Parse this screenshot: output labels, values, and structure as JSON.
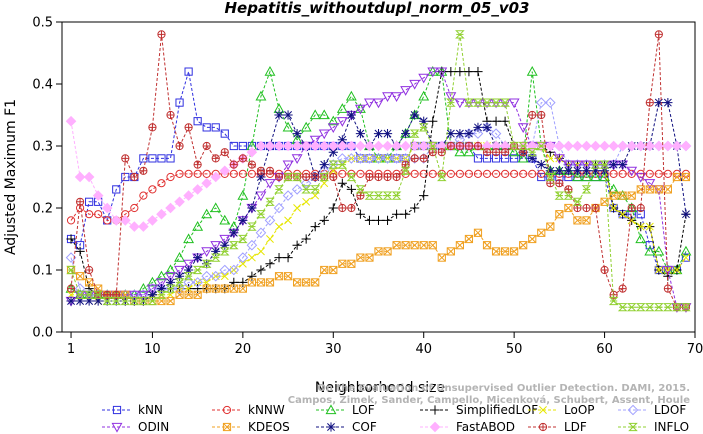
{
  "chart_data": {
    "type": "line",
    "title": "Hepatitis_withoutdupl_norm_05_v03",
    "xlabel": "Neighborhood size",
    "ylabel": "Adjusted Maximum F1",
    "xlim": [
      0,
      70
    ],
    "ylim": [
      0,
      0.5
    ],
    "xticks": [
      1,
      10,
      20,
      30,
      40,
      50,
      60,
      70
    ],
    "yticks": [
      0.0,
      0.1,
      0.2,
      0.3,
      0.4,
      0.5
    ],
    "x": [
      1,
      2,
      3,
      4,
      5,
      6,
      7,
      8,
      9,
      10,
      11,
      12,
      13,
      14,
      15,
      16,
      17,
      18,
      19,
      20,
      21,
      22,
      23,
      24,
      25,
      26,
      27,
      28,
      29,
      30,
      31,
      32,
      33,
      34,
      35,
      36,
      37,
      38,
      39,
      40,
      41,
      42,
      43,
      44,
      45,
      46,
      47,
      48,
      49,
      50,
      51,
      52,
      53,
      54,
      55,
      56,
      57,
      58,
      59,
      60,
      61,
      62,
      63,
      64,
      65,
      66,
      67,
      68,
      69
    ],
    "grid": false,
    "legend_position": "bottom",
    "series": [
      {
        "name": "kNN",
        "color": "#3030e0",
        "marker": "square",
        "values": [
          0.15,
          0.14,
          0.21,
          0.21,
          0.18,
          0.23,
          0.25,
          0.25,
          0.28,
          0.28,
          0.28,
          0.28,
          0.37,
          0.42,
          0.34,
          0.33,
          0.33,
          0.32,
          0.3,
          0.3,
          0.3,
          0.3,
          0.3,
          0.3,
          0.3,
          0.3,
          0.3,
          0.3,
          0.3,
          0.3,
          0.3,
          0.3,
          0.28,
          0.28,
          0.28,
          0.28,
          0.28,
          0.28,
          0.3,
          0.3,
          0.3,
          0.3,
          0.3,
          0.3,
          0.3,
          0.28,
          0.28,
          0.28,
          0.28,
          0.28,
          0.28,
          0.28,
          0.25,
          0.25,
          0.25,
          0.25,
          0.25,
          0.25,
          0.25,
          0.25,
          0.2,
          0.19,
          0.19,
          0.19,
          0.14,
          0.1,
          0.1,
          0.1,
          0.12
        ]
      },
      {
        "name": "kNNW",
        "color": "#e03030",
        "marker": "circle",
        "values": [
          0.18,
          0.2,
          0.19,
          0.19,
          0.18,
          0.18,
          0.19,
          0.2,
          0.22,
          0.23,
          0.24,
          0.25,
          0.255,
          0.255,
          0.255,
          0.255,
          0.255,
          0.255,
          0.255,
          0.255,
          0.255,
          0.255,
          0.255,
          0.255,
          0.255,
          0.255,
          0.255,
          0.255,
          0.255,
          0.255,
          0.255,
          0.255,
          0.255,
          0.255,
          0.255,
          0.255,
          0.255,
          0.255,
          0.255,
          0.255,
          0.255,
          0.255,
          0.255,
          0.255,
          0.255,
          0.255,
          0.255,
          0.255,
          0.255,
          0.255,
          0.255,
          0.255,
          0.255,
          0.255,
          0.255,
          0.255,
          0.255,
          0.255,
          0.255,
          0.255,
          0.255,
          0.255,
          0.255,
          0.255,
          0.255,
          0.255,
          0.255,
          0.255,
          0.255
        ]
      },
      {
        "name": "LOF",
        "color": "#20c020",
        "marker": "triangle-up",
        "values": [
          0.07,
          0.06,
          0.06,
          0.06,
          0.06,
          0.06,
          0.06,
          0.06,
          0.07,
          0.08,
          0.09,
          0.1,
          0.12,
          0.15,
          0.17,
          0.19,
          0.2,
          0.18,
          0.17,
          0.22,
          0.3,
          0.38,
          0.42,
          0.36,
          0.33,
          0.31,
          0.33,
          0.35,
          0.35,
          0.34,
          0.36,
          0.38,
          0.36,
          0.3,
          0.28,
          0.28,
          0.3,
          0.32,
          0.35,
          0.38,
          0.42,
          0.42,
          0.3,
          0.29,
          0.29,
          0.3,
          0.3,
          0.3,
          0.3,
          0.29,
          0.28,
          0.42,
          0.3,
          0.26,
          0.26,
          0.26,
          0.25,
          0.25,
          0.25,
          0.25,
          0.23,
          0.22,
          0.2,
          0.15,
          0.13,
          0.13,
          0.1,
          0.1,
          0.13
        ]
      },
      {
        "name": "SimplifiedLOF",
        "color": "#000000",
        "marker": "plus",
        "values": [
          0.15,
          0.13,
          0.07,
          0.06,
          0.06,
          0.06,
          0.05,
          0.05,
          0.05,
          0.06,
          0.07,
          0.07,
          0.07,
          0.07,
          0.07,
          0.07,
          0.07,
          0.07,
          0.08,
          0.08,
          0.09,
          0.1,
          0.11,
          0.12,
          0.12,
          0.14,
          0.15,
          0.17,
          0.18,
          0.2,
          0.24,
          0.23,
          0.19,
          0.18,
          0.18,
          0.18,
          0.19,
          0.19,
          0.2,
          0.22,
          0.34,
          0.42,
          0.42,
          0.42,
          0.42,
          0.42,
          0.34,
          0.34,
          0.34,
          0.3,
          0.3,
          0.3,
          0.3,
          0.29,
          0.28,
          0.27,
          0.27,
          0.27,
          0.27,
          0.27,
          0.2,
          0.19,
          0.18,
          0.17,
          0.17,
          0.1,
          0.09,
          0.1,
          0.19
        ]
      },
      {
        "name": "LoOP",
        "color": "#e6e600",
        "marker": "x",
        "values": [
          0.06,
          0.06,
          0.06,
          0.05,
          0.05,
          0.05,
          0.05,
          0.05,
          0.05,
          0.06,
          0.06,
          0.06,
          0.07,
          0.07,
          0.08,
          0.08,
          0.09,
          0.09,
          0.1,
          0.11,
          0.12,
          0.13,
          0.15,
          0.17,
          0.18,
          0.2,
          0.21,
          0.22,
          0.24,
          0.26,
          0.27,
          0.28,
          0.28,
          0.28,
          0.28,
          0.28,
          0.28,
          0.28,
          0.3,
          0.3,
          0.3,
          0.3,
          0.3,
          0.3,
          0.3,
          0.3,
          0.3,
          0.3,
          0.3,
          0.3,
          0.3,
          0.3,
          0.3,
          0.28,
          0.28,
          0.27,
          0.27,
          0.27,
          0.27,
          0.27,
          0.2,
          0.19,
          0.18,
          0.17,
          0.17,
          0.1,
          0.1,
          0.1,
          0.12
        ]
      },
      {
        "name": "LDOF",
        "color": "#a0a0ff",
        "marker": "diamond",
        "values": [
          0.12,
          0.07,
          0.06,
          0.06,
          0.06,
          0.06,
          0.06,
          0.06,
          0.06,
          0.07,
          0.07,
          0.07,
          0.07,
          0.08,
          0.08,
          0.09,
          0.09,
          0.1,
          0.1,
          0.12,
          0.14,
          0.16,
          0.18,
          0.2,
          0.22,
          0.23,
          0.24,
          0.25,
          0.26,
          0.27,
          0.28,
          0.28,
          0.28,
          0.28,
          0.28,
          0.28,
          0.28,
          0.28,
          0.28,
          0.28,
          0.3,
          0.3,
          0.3,
          0.31,
          0.32,
          0.32,
          0.33,
          0.32,
          0.3,
          0.3,
          0.29,
          0.3,
          0.37,
          0.37,
          0.3,
          0.27,
          0.27,
          0.27,
          0.27,
          0.27,
          0.27,
          0.3,
          0.3,
          0.3,
          0.3,
          0.3,
          0.3,
          0.3,
          0.3
        ]
      },
      {
        "name": "ODIN",
        "color": "#9030e0",
        "marker": "triangle-down",
        "values": [
          0.05,
          0.06,
          0.06,
          0.06,
          0.06,
          0.06,
          0.06,
          0.06,
          0.06,
          0.07,
          0.08,
          0.09,
          0.1,
          0.11,
          0.12,
          0.13,
          0.14,
          0.15,
          0.16,
          0.18,
          0.2,
          0.22,
          0.24,
          0.25,
          0.27,
          0.28,
          0.3,
          0.31,
          0.32,
          0.33,
          0.34,
          0.35,
          0.36,
          0.37,
          0.37,
          0.38,
          0.38,
          0.39,
          0.4,
          0.41,
          0.42,
          0.42,
          0.38,
          0.37,
          0.37,
          0.37,
          0.37,
          0.37,
          0.37,
          0.37,
          0.33,
          0.3,
          0.3,
          0.3,
          0.28,
          0.27,
          0.27,
          0.27,
          0.27,
          0.27,
          0.27,
          0.27,
          0.26,
          0.25,
          0.24,
          0.23,
          0.1,
          0.04,
          0.04
        ]
      },
      {
        "name": "KDEOS",
        "color": "#f0a020",
        "marker": "square-x",
        "values": [
          0.1,
          0.09,
          0.08,
          0.07,
          0.06,
          0.06,
          0.06,
          0.05,
          0.05,
          0.05,
          0.05,
          0.05,
          0.06,
          0.06,
          0.06,
          0.07,
          0.07,
          0.07,
          0.07,
          0.07,
          0.08,
          0.08,
          0.08,
          0.09,
          0.09,
          0.08,
          0.08,
          0.08,
          0.1,
          0.1,
          0.11,
          0.11,
          0.12,
          0.12,
          0.13,
          0.13,
          0.14,
          0.14,
          0.14,
          0.14,
          0.14,
          0.12,
          0.13,
          0.14,
          0.15,
          0.16,
          0.14,
          0.13,
          0.13,
          0.13,
          0.14,
          0.15,
          0.16,
          0.17,
          0.19,
          0.2,
          0.18,
          0.18,
          0.2,
          0.21,
          0.22,
          0.22,
          0.22,
          0.23,
          0.23,
          0.23,
          0.23,
          0.25,
          0.25
        ]
      },
      {
        "name": "COF",
        "color": "#101080",
        "marker": "asterisk",
        "values": [
          0.05,
          0.05,
          0.05,
          0.05,
          0.05,
          0.05,
          0.05,
          0.05,
          0.05,
          0.06,
          0.07,
          0.08,
          0.09,
          0.1,
          0.12,
          0.11,
          0.13,
          0.14,
          0.16,
          0.18,
          0.2,
          0.25,
          0.3,
          0.35,
          0.35,
          0.32,
          0.3,
          0.25,
          0.27,
          0.29,
          0.31,
          0.35,
          0.32,
          0.3,
          0.32,
          0.32,
          0.3,
          0.32,
          0.35,
          0.34,
          0.3,
          0.3,
          0.32,
          0.32,
          0.32,
          0.33,
          0.33,
          0.3,
          0.3,
          0.3,
          0.29,
          0.28,
          0.27,
          0.26,
          0.26,
          0.26,
          0.26,
          0.26,
          0.26,
          0.26,
          0.27,
          0.27,
          0.3,
          0.3,
          0.3,
          0.37,
          0.37,
          0.3,
          0.19
        ]
      },
      {
        "name": "FastABOD",
        "color": "#ffb0ff",
        "marker": "diamond-filled",
        "values": [
          0.34,
          0.25,
          0.25,
          0.22,
          0.2,
          0.18,
          0.18,
          0.17,
          0.17,
          0.18,
          0.19,
          0.2,
          0.21,
          0.22,
          0.23,
          0.24,
          0.25,
          0.26,
          0.27,
          0.28,
          0.29,
          0.3,
          0.3,
          0.3,
          0.3,
          0.3,
          0.3,
          0.3,
          0.3,
          0.3,
          0.3,
          0.3,
          0.3,
          0.3,
          0.3,
          0.3,
          0.3,
          0.3,
          0.3,
          0.3,
          0.3,
          0.3,
          0.3,
          0.3,
          0.3,
          0.3,
          0.3,
          0.3,
          0.3,
          0.3,
          0.3,
          0.3,
          0.3,
          0.3,
          0.3,
          0.3,
          0.3,
          0.3,
          0.3,
          0.3,
          0.3,
          0.3,
          0.3,
          0.3,
          0.3,
          0.3,
          0.3,
          0.3,
          0.3
        ]
      },
      {
        "name": "LDF",
        "color": "#c03030",
        "marker": "circle-plus",
        "values": [
          0.07,
          0.21,
          0.1,
          0.06,
          0.06,
          0.06,
          0.28,
          0.25,
          0.26,
          0.33,
          0.48,
          0.35,
          0.3,
          0.33,
          0.27,
          0.3,
          0.28,
          0.29,
          0.27,
          0.28,
          0.27,
          0.26,
          0.26,
          0.25,
          0.25,
          0.25,
          0.25,
          0.25,
          0.25,
          0.25,
          0.2,
          0.2,
          0.22,
          0.25,
          0.25,
          0.25,
          0.25,
          0.27,
          0.28,
          0.28,
          0.29,
          0.29,
          0.3,
          0.3,
          0.3,
          0.3,
          0.29,
          0.29,
          0.29,
          0.3,
          0.29,
          0.35,
          0.35,
          0.24,
          0.24,
          0.23,
          0.2,
          0.2,
          0.2,
          0.1,
          0.06,
          0.07,
          0.2,
          0.2,
          0.37,
          0.48,
          0.07,
          0.04,
          0.04
        ]
      },
      {
        "name": "INFLO",
        "color": "#90d030",
        "marker": "hourglass",
        "values": [
          0.1,
          0.06,
          0.06,
          0.06,
          0.05,
          0.05,
          0.05,
          0.05,
          0.05,
          0.05,
          0.06,
          0.07,
          0.08,
          0.09,
          0.1,
          0.11,
          0.12,
          0.13,
          0.14,
          0.15,
          0.17,
          0.19,
          0.21,
          0.23,
          0.25,
          0.25,
          0.23,
          0.23,
          0.25,
          0.27,
          0.27,
          0.25,
          0.23,
          0.22,
          0.22,
          0.22,
          0.22,
          0.26,
          0.32,
          0.33,
          0.3,
          0.25,
          0.37,
          0.48,
          0.37,
          0.37,
          0.37,
          0.37,
          0.37,
          0.3,
          0.3,
          0.29,
          0.3,
          0.25,
          0.22,
          0.22,
          0.21,
          0.23,
          0.27,
          0.27,
          0.05,
          0.04,
          0.04,
          0.04,
          0.04,
          0.04,
          0.04,
          0.04,
          0.04
        ]
      }
    ]
  },
  "watermark": {
    "line1": "Campos, Zimek, Sander, Campello, Micenková, Schubert, Assent, Houle",
    "line2": "On the Evaluation of Unsupervised Outlier Detection. DAMI, 2015."
  }
}
